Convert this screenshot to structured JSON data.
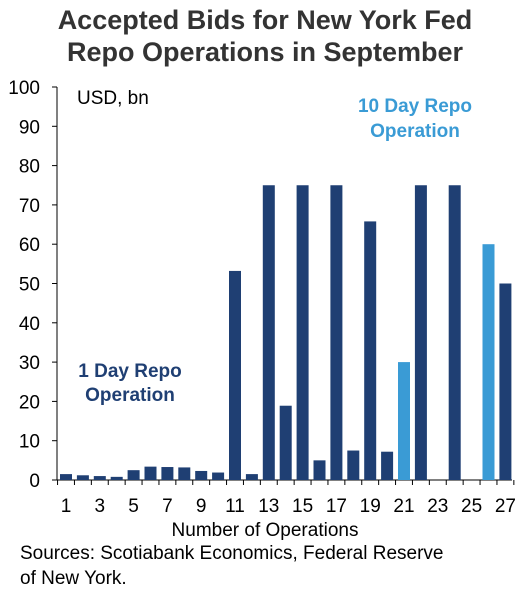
{
  "title_line1": "Accepted Bids for New York Fed",
  "title_line2": "Repo Operations in September",
  "sources_line1": "Sources: Scotiabank Economics, Federal Reserve",
  "sources_line2": "of New York.",
  "colors": {
    "one_day": "#1f3f73",
    "ten_day": "#3a9bd5",
    "axis": "#000000",
    "title": "#333333"
  },
  "chart_data": {
    "type": "bar",
    "title": "Accepted Bids for New York Fed Repo Operations in September",
    "xlabel": "Number of Operations",
    "ylabel": "USD, bn",
    "ylim": [
      0,
      100
    ],
    "yticks": [
      0,
      10,
      20,
      30,
      40,
      50,
      60,
      70,
      80,
      90,
      100
    ],
    "categories": [
      "1",
      "2",
      "3",
      "4",
      "5",
      "6",
      "7",
      "8",
      "9",
      "10",
      "11",
      "12",
      "13",
      "14",
      "15",
      "16",
      "17",
      "18",
      "19",
      "20",
      "21",
      "22",
      "23",
      "24",
      "25",
      "26",
      "27"
    ],
    "xtick_labels": [
      "1",
      "3",
      "5",
      "7",
      "9",
      "11",
      "13",
      "15",
      "17",
      "19",
      "21",
      "23",
      "25",
      "27"
    ],
    "series": [
      {
        "name": "1 Day Repo Operation",
        "values": [
          1.5,
          1.2,
          1.0,
          0.8,
          2.5,
          3.4,
          3.3,
          3.2,
          2.3,
          1.9,
          53.2,
          1.5,
          75,
          18.9,
          75,
          5.0,
          75,
          7.5,
          65.8,
          7.2,
          null,
          75,
          null,
          75,
          null,
          null,
          50
        ]
      },
      {
        "name": "10 Day Repo Operation",
        "values": [
          null,
          null,
          null,
          null,
          null,
          null,
          null,
          null,
          null,
          null,
          null,
          null,
          null,
          null,
          null,
          null,
          null,
          null,
          null,
          null,
          30,
          null,
          null,
          null,
          null,
          60,
          null
        ]
      }
    ],
    "annotations": [
      {
        "line1": "1 Day Repo",
        "line2": "Operation",
        "color": "#1f3f73"
      },
      {
        "line1": "10 Day Repo",
        "line2": "Operation",
        "color": "#3a9bd5"
      }
    ]
  }
}
